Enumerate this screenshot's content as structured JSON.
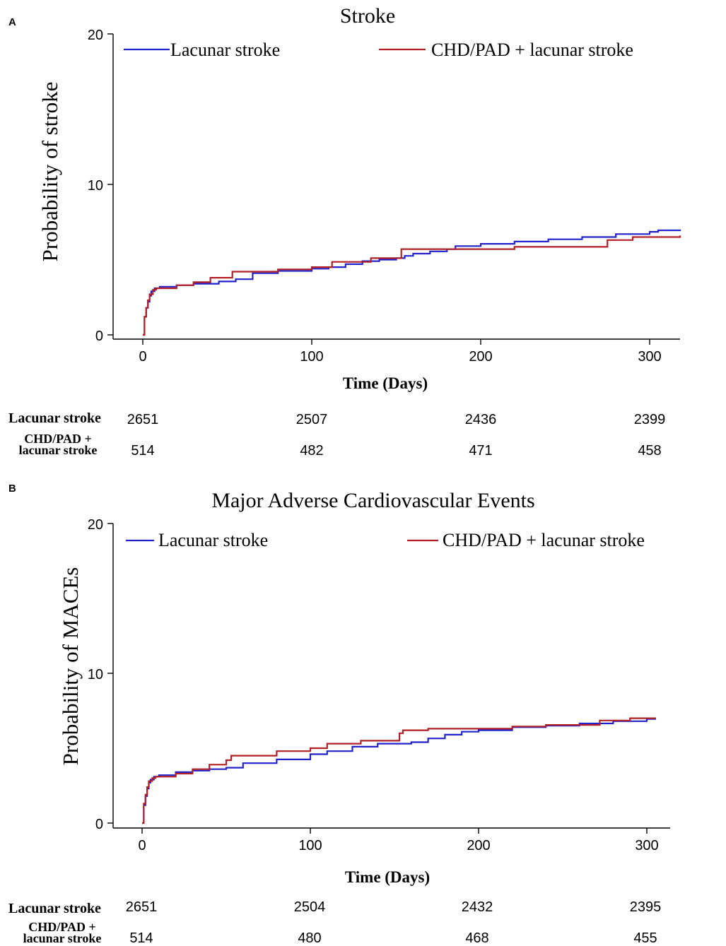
{
  "colors": {
    "lacunar": "#2222cc",
    "chd": "#b21f24",
    "axis": "#000000"
  },
  "chart_data": [
    {
      "panel_label": "A",
      "type": "line",
      "title": "Stroke",
      "xlabel": "Time (Days)",
      "ylabel": "Probability of stroke",
      "xlim": [
        -18,
        318
      ],
      "ylim": [
        0,
        20
      ],
      "xticks": [
        0,
        100,
        200,
        300
      ],
      "yticks": [
        0,
        10,
        20
      ],
      "legend": "top",
      "series": [
        {
          "name": "Lacunar stroke",
          "color": "blue",
          "x": [
            0,
            1,
            2,
            3,
            4,
            5,
            7,
            10,
            20,
            30,
            45,
            55,
            65,
            80,
            100,
            110,
            120,
            130,
            140,
            150,
            155,
            160,
            170,
            180,
            185,
            200,
            220,
            240,
            260,
            280,
            300,
            305,
            318
          ],
          "y": [
            0,
            1.2,
            1.8,
            2.2,
            2.6,
            2.9,
            3.1,
            3.2,
            3.3,
            3.4,
            3.55,
            3.7,
            4.1,
            4.25,
            4.4,
            4.5,
            4.7,
            4.9,
            5.0,
            5.1,
            5.25,
            5.4,
            5.55,
            5.7,
            5.9,
            6.05,
            6.2,
            6.35,
            6.5,
            6.7,
            6.85,
            6.95,
            7.0
          ]
        },
        {
          "name": "CHD/PAD + lacunar stroke",
          "color": "red",
          "x": [
            0,
            1,
            2,
            3,
            4,
            6,
            8,
            12,
            20,
            30,
            40,
            53,
            80,
            100,
            112,
            135,
            153,
            170,
            200,
            220,
            240,
            260,
            270,
            275,
            290,
            318
          ],
          "y": [
            0,
            1.2,
            1.8,
            2.3,
            2.7,
            3.0,
            3.1,
            3.1,
            3.3,
            3.5,
            3.8,
            4.2,
            4.35,
            4.5,
            4.85,
            5.1,
            5.7,
            5.7,
            5.7,
            5.85,
            5.85,
            5.85,
            5.85,
            6.3,
            6.5,
            6.6
          ]
        }
      ],
      "risk_table": {
        "rows": [
          {
            "label": "Lacunar stroke",
            "values": [
              "2651",
              "2507",
              "2436",
              "2399"
            ]
          },
          {
            "label_line1": "CHD/PAD +",
            "label_line2": "lacunar stroke",
            "values": [
              "514",
              "482",
              "471",
              "458"
            ]
          }
        ]
      }
    },
    {
      "panel_label": "B",
      "type": "line",
      "title": "Major Adverse Cardiovascular Events",
      "xlabel": "Time (Days)",
      "ylabel": "Probability of MACEs",
      "xlim": [
        -18,
        315
      ],
      "ylim": [
        0,
        20
      ],
      "xticks": [
        0,
        100,
        200,
        300
      ],
      "yticks": [
        0,
        10,
        20
      ],
      "legend": "top",
      "series": [
        {
          "name": "Lacunar stroke",
          "color": "blue",
          "x": [
            0,
            1,
            2,
            3,
            4,
            5,
            7,
            10,
            20,
            30,
            40,
            50,
            60,
            80,
            100,
            110,
            125,
            140,
            160,
            170,
            180,
            190,
            200,
            220,
            240,
            260,
            280,
            300,
            305
          ],
          "y": [
            0,
            1.2,
            1.8,
            2.3,
            2.7,
            2.9,
            3.1,
            3.2,
            3.4,
            3.5,
            3.6,
            3.7,
            4.0,
            4.25,
            4.6,
            4.8,
            5.1,
            5.3,
            5.4,
            5.65,
            5.9,
            6.1,
            6.2,
            6.4,
            6.5,
            6.65,
            6.8,
            6.95,
            7.0
          ]
        },
        {
          "name": "CHD/PAD + lacunar stroke",
          "color": "red",
          "x": [
            0,
            1,
            2,
            3,
            4,
            6,
            8,
            12,
            20,
            30,
            40,
            50,
            53,
            80,
            100,
            110,
            130,
            153,
            155,
            170,
            190,
            200,
            220,
            240,
            260,
            270,
            272,
            290,
            305
          ],
          "y": [
            0,
            1.3,
            1.9,
            2.4,
            2.8,
            3.0,
            3.1,
            3.1,
            3.3,
            3.6,
            3.9,
            4.2,
            4.5,
            4.8,
            5.0,
            5.3,
            5.5,
            6.0,
            6.2,
            6.3,
            6.3,
            6.3,
            6.45,
            6.55,
            6.55,
            6.55,
            6.85,
            7.0,
            7.05
          ]
        }
      ],
      "risk_table": {
        "rows": [
          {
            "label": "Lacunar stroke",
            "values": [
              "2651",
              "2504",
              "2432",
              "2395"
            ]
          },
          {
            "label_line1": "CHD/PAD +",
            "label_line2": "lacunar stroke",
            "values": [
              "514",
              "480",
              "468",
              "455"
            ]
          }
        ]
      }
    }
  ]
}
